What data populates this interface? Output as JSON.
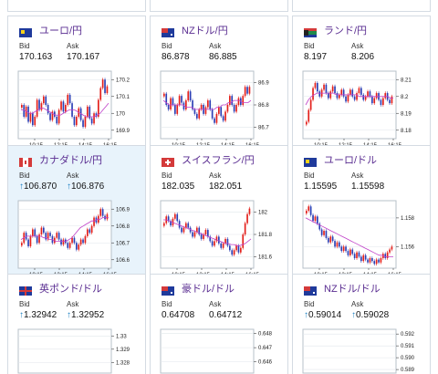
{
  "labels": {
    "bid": "Bid",
    "ask": "Ask"
  },
  "colors": {
    "up": "#e3201b",
    "down": "#2b3fb5",
    "ma": "#c040c8",
    "title": "#5a2d91",
    "arrow": "#1a7fc2"
  },
  "cards": [
    {
      "pair": "ユーロ/円",
      "flag": "eu-flag",
      "bid": "170.163",
      "ask": "170.167",
      "arrow": "",
      "chart_data": {
        "type": "candlestick",
        "yticks": [
          "170.2",
          "170.1",
          "170",
          "169.9"
        ],
        "yrange": [
          169.85,
          170.25
        ],
        "ytick_values": [
          170.2,
          170.1,
          170,
          169.9
        ],
        "xticks": [
          "10:15",
          "12:15",
          "14:15",
          "16:15"
        ],
        "values": [
          170.05,
          169.98,
          170.04,
          169.95,
          170.0,
          169.93,
          169.98,
          170.08,
          170.02,
          170.06,
          170.1,
          170.05,
          170.0,
          169.96,
          170.01,
          169.98,
          169.94,
          170.02,
          170.07,
          170.01,
          170.05,
          170.11,
          170.06,
          169.98,
          169.93,
          169.98,
          170.03,
          169.96,
          169.92,
          169.98,
          170.04,
          169.97,
          169.94,
          170.0,
          169.98,
          170.08,
          170.15,
          170.2,
          170.12,
          170.16
        ],
        "ma": [
          170.02,
          170.02,
          170.01,
          170.0,
          170.0,
          170.01,
          170.02,
          170.03,
          170.03,
          170.02,
          170.01,
          170.0,
          169.99,
          169.99,
          169.99,
          170.0,
          170.01,
          170.02,
          170.02,
          170.02,
          170.01,
          170.0,
          169.99,
          169.98,
          169.98,
          169.98,
          169.98,
          169.99,
          170.0,
          170.02,
          170.04,
          170.06
        ]
      }
    },
    {
      "pair": "NZドル/円",
      "flag": "nz-flag",
      "bid": "86.878",
      "ask": "86.885",
      "arrow": "",
      "chart_data": {
        "type": "candlestick",
        "yticks": [
          "86.9",
          "86.8",
          "86.7"
        ],
        "yrange": [
          86.65,
          86.95
        ],
        "ytick_values": [
          86.9,
          86.8,
          86.7
        ],
        "xticks": [
          "10:15",
          "12:15",
          "14:15",
          "16:15"
        ],
        "values": [
          86.85,
          86.8,
          86.78,
          86.83,
          86.8,
          86.76,
          86.8,
          86.84,
          86.81,
          86.78,
          86.82,
          86.86,
          86.82,
          86.78,
          86.76,
          86.74,
          86.78,
          86.8,
          86.76,
          86.79,
          86.82,
          86.78,
          86.74,
          86.72,
          86.76,
          86.79,
          86.75,
          86.73,
          86.77,
          86.8,
          86.84,
          86.8,
          86.77,
          86.8,
          86.83,
          86.8,
          86.84,
          86.88,
          86.85,
          86.88
        ],
        "ma": [
          86.82,
          86.81,
          86.8,
          86.8,
          86.8,
          86.8,
          86.8,
          86.8,
          86.79,
          86.79,
          86.79,
          86.78,
          86.78,
          86.78,
          86.78,
          86.78,
          86.78,
          86.78,
          86.78,
          86.79,
          86.79,
          86.8,
          86.8,
          86.81,
          86.81,
          86.82,
          86.82,
          86.82,
          86.81,
          86.81,
          86.81,
          86.82
        ]
      }
    },
    {
      "pair": "ランド/円",
      "flag": "za-flag",
      "bid": "8.197",
      "ask": "8.206",
      "arrow": "",
      "chart_data": {
        "type": "candlestick",
        "yticks": [
          "8.21",
          "8.2",
          "8.19",
          "8.18"
        ],
        "yrange": [
          8.175,
          8.215
        ],
        "ytick_values": [
          8.21,
          8.2,
          8.19,
          8.18
        ],
        "xticks": [
          "10:15",
          "12:15",
          "14:15",
          "16:15"
        ],
        "values": [
          8.185,
          8.192,
          8.198,
          8.205,
          8.208,
          8.203,
          8.2,
          8.204,
          8.207,
          8.202,
          8.199,
          8.203,
          8.206,
          8.202,
          8.199,
          8.201,
          8.204,
          8.2,
          8.197,
          8.201,
          8.204,
          8.2,
          8.198,
          8.202,
          8.205,
          8.201,
          8.198,
          8.2,
          8.203,
          8.2,
          8.196,
          8.199,
          8.202,
          8.198,
          8.195,
          8.199,
          8.202,
          8.198,
          8.196,
          8.2
        ],
        "ma": [
          8.195,
          8.198,
          8.2,
          8.201,
          8.202,
          8.202,
          8.202,
          8.202,
          8.202,
          8.202,
          8.202,
          8.201,
          8.201,
          8.201,
          8.201,
          8.201,
          8.201,
          8.201,
          8.201,
          8.2,
          8.2,
          8.2,
          8.2,
          8.2,
          8.2,
          8.2,
          8.2,
          8.2,
          8.2,
          8.2,
          8.199,
          8.199
        ]
      }
    },
    {
      "pair": "カナダドル/円",
      "flag": "ca-flag",
      "bid": "106.870",
      "ask": "106.876",
      "arrow": "↑",
      "chart_data": {
        "type": "candlestick",
        "yticks": [
          "106.9",
          "106.8",
          "106.7",
          "106.6"
        ],
        "yrange": [
          106.55,
          106.95
        ],
        "ytick_values": [
          106.9,
          106.8,
          106.7,
          106.6
        ],
        "xticks": [
          "10:15",
          "12:15",
          "14:15",
          "16:15"
        ],
        "values": [
          106.7,
          106.76,
          106.72,
          106.68,
          106.74,
          106.78,
          106.74,
          106.7,
          106.75,
          106.79,
          106.76,
          106.72,
          106.76,
          106.74,
          106.7,
          106.73,
          106.76,
          106.72,
          106.69,
          106.72,
          106.7,
          106.67,
          106.7,
          106.73,
          106.7,
          106.66,
          106.69,
          106.72,
          106.7,
          106.74,
          106.78,
          106.76,
          106.8,
          106.85,
          106.82,
          106.86,
          106.9,
          106.86,
          106.84,
          106.87
        ],
        "ma": [
          106.72,
          106.73,
          106.74,
          106.74,
          106.74,
          106.74,
          106.74,
          106.74,
          106.73,
          106.73,
          106.72,
          106.72,
          106.71,
          106.71,
          106.71,
          106.71,
          106.71,
          106.72,
          106.73,
          106.75,
          106.77,
          106.79,
          106.8,
          106.81,
          106.82,
          106.83,
          106.83,
          106.84,
          106.84,
          106.85,
          106.85,
          106.85
        ]
      }
    },
    {
      "pair": "スイスフラン/円",
      "flag": "ch-flag",
      "bid": "182.035",
      "ask": "182.051",
      "arrow": "",
      "chart_data": {
        "type": "candlestick",
        "yticks": [
          "182",
          "181.8",
          "181.6"
        ],
        "yrange": [
          181.5,
          182.1
        ],
        "ytick_values": [
          182,
          181.8,
          181.6
        ],
        "xticks": [
          "10:15",
          "12:15",
          "14:15",
          "16:15"
        ],
        "values": [
          181.9,
          181.96,
          181.92,
          181.88,
          181.94,
          181.98,
          181.92,
          181.86,
          181.82,
          181.86,
          181.9,
          181.86,
          181.82,
          181.78,
          181.82,
          181.86,
          181.8,
          181.76,
          181.8,
          181.84,
          181.78,
          181.74,
          181.7,
          181.74,
          181.78,
          181.72,
          181.68,
          181.72,
          181.76,
          181.7,
          181.66,
          181.62,
          181.66,
          181.7,
          181.64,
          181.68,
          181.8,
          181.9,
          181.98,
          182.03
        ],
        "ma": [
          181.93,
          181.93,
          181.92,
          181.91,
          181.9,
          181.89,
          181.88,
          181.87,
          181.86,
          181.85,
          181.84,
          181.83,
          181.82,
          181.81,
          181.8,
          181.79,
          181.78,
          181.77,
          181.76,
          181.75,
          181.74,
          181.73,
          181.72,
          181.72,
          181.71,
          181.71,
          181.7,
          181.7,
          181.71,
          181.72,
          181.74,
          181.76
        ]
      }
    },
    {
      "pair": "ユーロ/ドル",
      "flag": "eu-flag",
      "bid": "1.15595",
      "ask": "1.15598",
      "arrow": "",
      "chart_data": {
        "type": "candlestick",
        "yticks": [
          "1.158",
          "1.156"
        ],
        "yrange": [
          1.1545,
          1.1592
        ],
        "ytick_values": [
          1.158,
          1.156
        ],
        "xticks": [
          "10:15",
          "12:15",
          "14:15",
          "16:15"
        ],
        "values": [
          1.1585,
          1.1588,
          1.1582,
          1.1578,
          1.1581,
          1.1576,
          1.1572,
          1.1568,
          1.1571,
          1.1566,
          1.1563,
          1.1567,
          1.1564,
          1.156,
          1.1563,
          1.156,
          1.1557,
          1.156,
          1.1557,
          1.1554,
          1.1558,
          1.1555,
          1.1552,
          1.1556,
          1.1553,
          1.155,
          1.1554,
          1.1551,
          1.1549,
          1.1552,
          1.155,
          1.1548,
          1.1551,
          1.1549,
          1.1552,
          1.1555,
          1.1552,
          1.1556,
          1.1558,
          1.156
        ],
        "ma": [
          1.158,
          1.1579,
          1.1578,
          1.1577,
          1.1576,
          1.1575,
          1.1574,
          1.1573,
          1.1572,
          1.1571,
          1.157,
          1.1569,
          1.1568,
          1.1567,
          1.1566,
          1.1565,
          1.1564,
          1.1563,
          1.1562,
          1.1561,
          1.156,
          1.1559,
          1.1558,
          1.1557,
          1.1556,
          1.1555,
          1.1554,
          1.1554,
          1.1553,
          1.1553,
          1.1553,
          1.1553
        ]
      }
    },
    {
      "pair": "英ポンド/ドル",
      "flag": "gb-flag",
      "bid": "1.32942",
      "ask": "1.32952",
      "arrow": "↑",
      "chart_data": {
        "type": "candlestick",
        "yticks": [
          "1.33",
          "1.329",
          "1.328"
        ],
        "yrange": [
          1.3272,
          1.3305
        ],
        "ytick_values": [
          1.33,
          1.329,
          1.328
        ],
        "xticks": [],
        "values": [],
        "ma": []
      }
    },
    {
      "pair": "豪ドル/ドル",
      "flag": "au-flag",
      "bid": "0.64708",
      "ask": "0.64712",
      "arrow": "",
      "chart_data": {
        "type": "candlestick",
        "yticks": [
          "0.648",
          "0.647",
          "0.646"
        ],
        "yrange": [
          0.6452,
          0.6483
        ],
        "ytick_values": [
          0.648,
          0.647,
          0.646
        ],
        "xticks": [],
        "values": [],
        "ma": []
      }
    },
    {
      "pair": "NZドル/ドル",
      "flag": "nz-flag",
      "bid": "0.59014",
      "ask": "0.59028",
      "arrow": "↑",
      "chart_data": {
        "type": "candlestick",
        "yticks": [
          "0.592",
          "0.591",
          "0.590",
          "0.589"
        ],
        "yrange": [
          0.5887,
          0.5924
        ],
        "ytick_values": [
          0.592,
          0.591,
          0.59,
          0.589
        ],
        "xticks": [],
        "values": [],
        "ma": []
      }
    }
  ]
}
